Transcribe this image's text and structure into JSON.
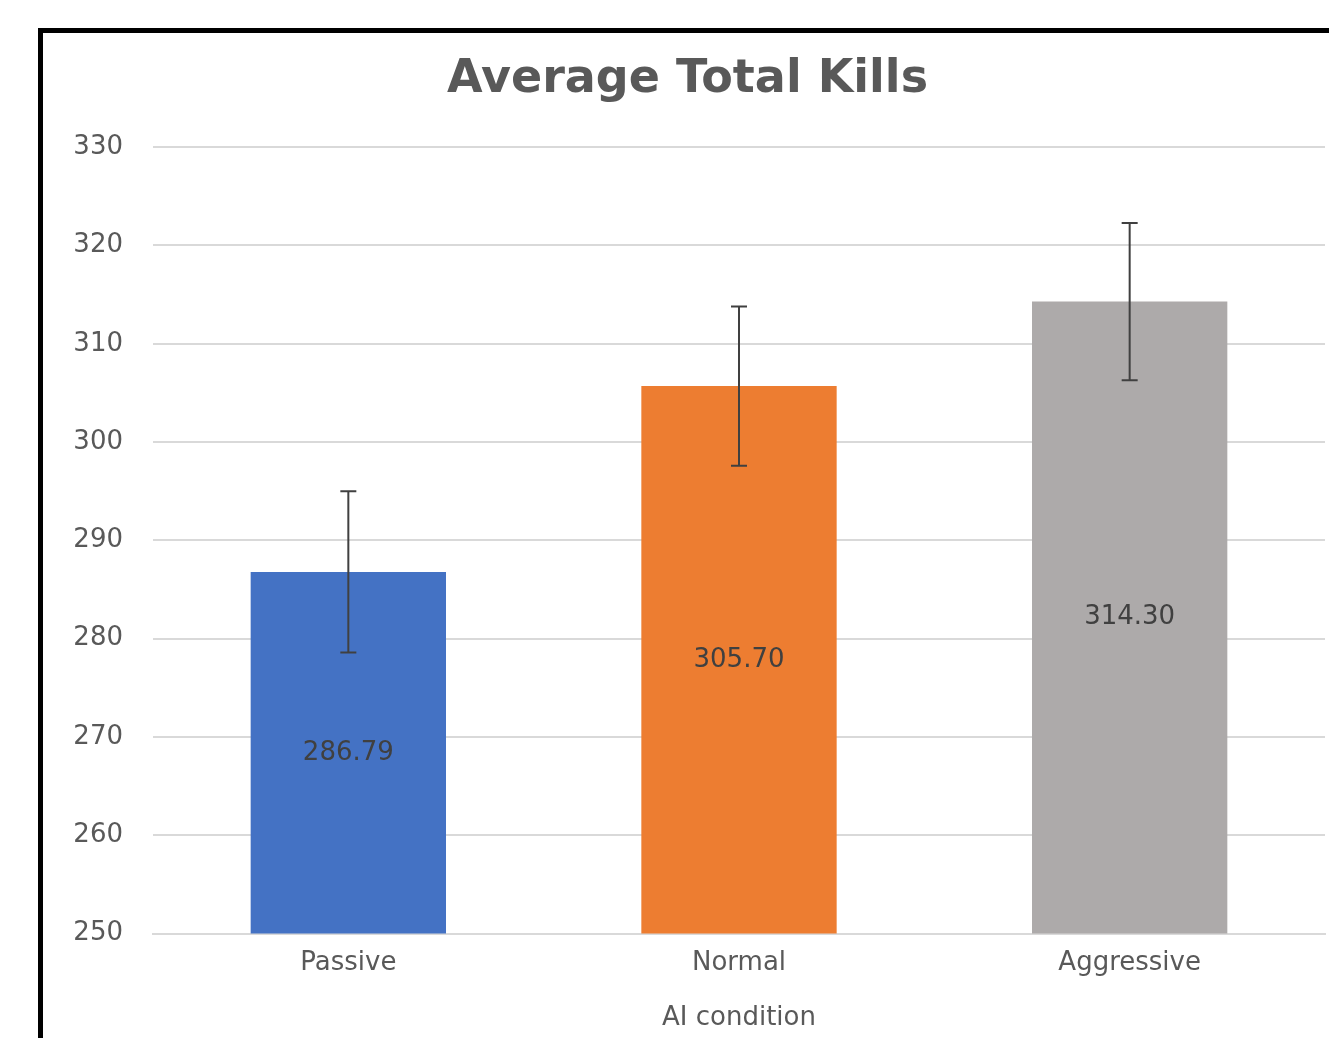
{
  "chart_data": {
    "type": "bar",
    "title": "Average Total Kills",
    "xlabel": "AI condition",
    "categories": [
      "Passive",
      "Normal",
      "Aggressive"
    ],
    "values": [
      286.79,
      305.7,
      314.3
    ],
    "colors": [
      "#4472c4",
      "#ed7d31",
      "#adaaaa"
    ],
    "errors": [
      8.2,
      8.1,
      8.0
    ],
    "value_labels": [
      "286.79",
      "305.70",
      "314.30"
    ],
    "ylim": [
      250,
      330
    ],
    "yticks": [
      250,
      260,
      270,
      280,
      290,
      300,
      310,
      320,
      330
    ],
    "grid": "y",
    "legend": false
  }
}
